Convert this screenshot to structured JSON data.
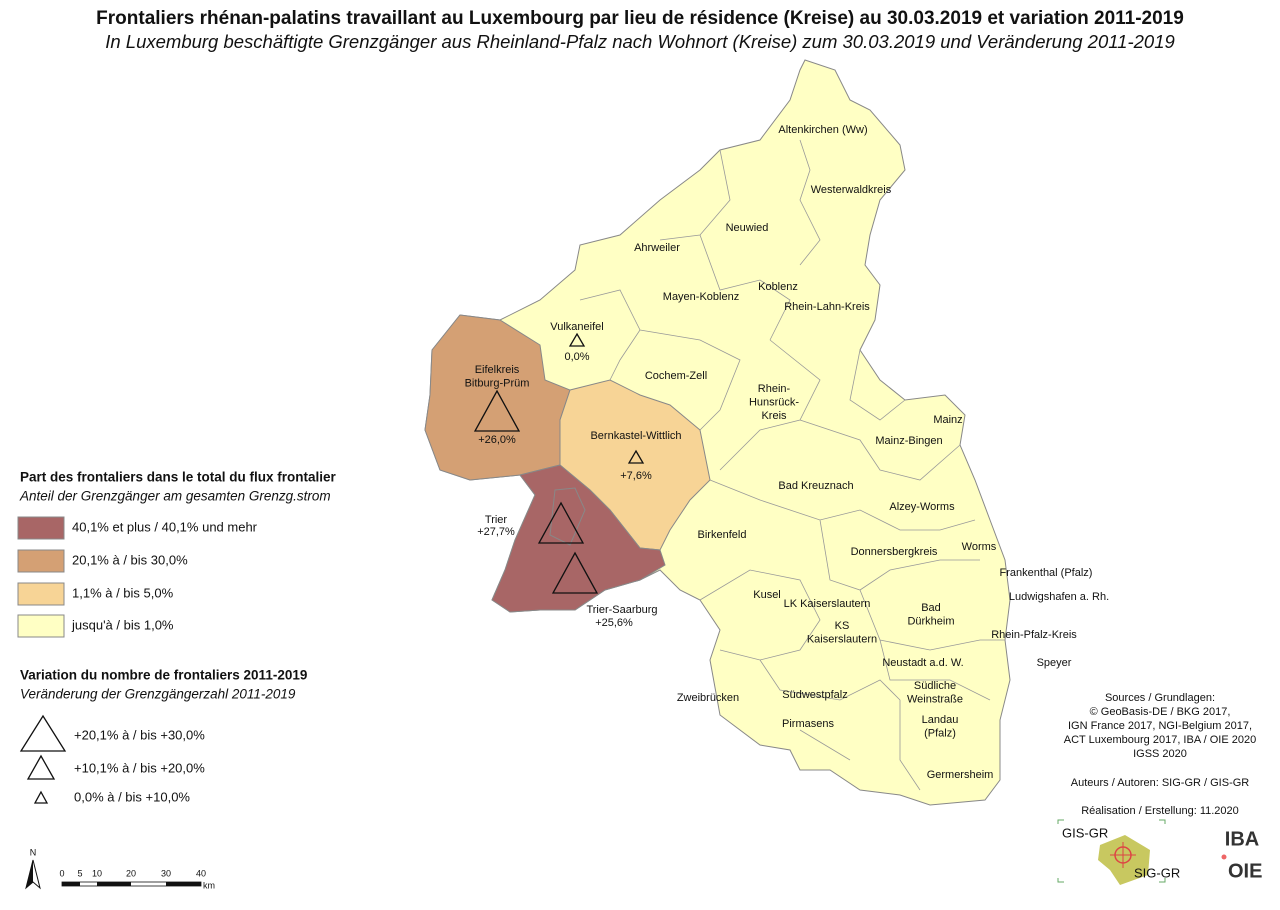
{
  "title": {
    "fr": "Frontaliers rhénan-palatins travaillant au Luxembourg par lieu de résidence (Kreise) au 30.03.2019 et variation 2011-2019",
    "de": "In Luxemburg beschäftigte Grenzgänger aus Rheinland-Pfalz nach Wohnort (Kreise) zum 30.03.2019 und Veränderung 2011-2019"
  },
  "legend_share": {
    "title_fr": "Part des frontaliers dans le total du flux frontalier",
    "title_de": "Anteil der Grenzgänger am gesamten Grenzg.strom",
    "classes": [
      {
        "label": "40,1% et plus / 40,1% und mehr",
        "color": "#a86666"
      },
      {
        "label": "20,1% à / bis 30,0%",
        "color": "#d4a074"
      },
      {
        "label": "1,1% à / bis 5,0%",
        "color": "#f7d496"
      },
      {
        "label": "jusqu'à / bis 1,0%",
        "color": "#ffffc4"
      }
    ]
  },
  "legend_variation": {
    "title_fr": "Variation du nombre de frontaliers 2011-2019",
    "title_de": "Veränderung der Grenzgängerzahl 2011-2019",
    "classes": [
      "+20,1% à / bis +30,0%",
      "+10,1% à / bis +20,0%",
      "0,0% à / bis +10,0%"
    ]
  },
  "districts": [
    {
      "label": [
        "Altenkirchen (Ww)"
      ]
    },
    {
      "label": [
        "Westerwaldkreis"
      ]
    },
    {
      "label": [
        "Neuwied"
      ]
    },
    {
      "label": [
        "Ahrweiler"
      ]
    },
    {
      "label": [
        "Koblenz"
      ]
    },
    {
      "label": [
        "Mayen-Koblenz"
      ]
    },
    {
      "label": [
        "Rhein-Lahn-Kreis"
      ]
    },
    {
      "label": [
        "Vulkaneifel"
      ],
      "variation": "0,0%"
    },
    {
      "label": [
        "Eifelkreis",
        "Bitburg-Prüm"
      ],
      "variation": "+26,0%"
    },
    {
      "label": [
        "Cochem-Zell"
      ]
    },
    {
      "label": [
        "Rhein-",
        "Hunsrück-",
        "Kreis"
      ]
    },
    {
      "label": [
        "Mainz"
      ]
    },
    {
      "label": [
        "Mainz-Bingen"
      ]
    },
    {
      "label": [
        "Bernkastel-Wittlich"
      ],
      "variation": "+7,6%"
    },
    {
      "label": [
        "Bad Kreuznach"
      ]
    },
    {
      "label": [
        "Alzey-Worms"
      ]
    },
    {
      "label": [
        "Trier"
      ],
      "variation": "+27,7%"
    },
    {
      "label": [
        "Birkenfeld"
      ]
    },
    {
      "label": [
        "Donnersbergkreis"
      ]
    },
    {
      "label": [
        "Worms"
      ]
    },
    {
      "label": [
        "Trier-Saarburg"
      ],
      "variation": "+25,6%"
    },
    {
      "label": [
        "Frankenthal (Pfalz)"
      ]
    },
    {
      "label": [
        "Kusel"
      ]
    },
    {
      "label": [
        "Ludwigshafen a. Rh."
      ]
    },
    {
      "label": [
        "LK Kaiserslautern"
      ]
    },
    {
      "label": [
        "Bad",
        "Dürkheim"
      ]
    },
    {
      "label": [
        "KS",
        "Kaiserslautern"
      ]
    },
    {
      "label": [
        "Rhein-Pfalz-Kreis"
      ]
    },
    {
      "label": [
        "Speyer"
      ]
    },
    {
      "label": [
        "Neustadt a.d. W."
      ]
    },
    {
      "label": [
        "Zweibrücken"
      ]
    },
    {
      "label": [
        "Südwestpfalz"
      ]
    },
    {
      "label": [
        "Südliche",
        "Weinstraße"
      ]
    },
    {
      "label": [
        "Pirmasens"
      ]
    },
    {
      "label": [
        "Landau",
        "(Pfalz)"
      ]
    },
    {
      "label": [
        "Germersheim"
      ]
    }
  ],
  "scale": {
    "north": "N",
    "ticks": [
      "0",
      "5",
      "10",
      "20",
      "30",
      "40"
    ],
    "unit": "km"
  },
  "sources": [
    "Sources / Grundlagen:",
    "© GeoBasis-DE / BKG 2017,",
    "IGN France 2017, NGI-Belgium 2017,",
    "ACT Luxembourg 2017, IBA / OIE 2020",
    "IGSS 2020"
  ],
  "authors": "Auteurs / Autoren: SIG-GR / GIS-GR",
  "realisation": "Réalisation / Erstellung: 11.2020",
  "logos": [
    "GIS-GR",
    "SIG-GR",
    "IBA",
    "OIE"
  ]
}
